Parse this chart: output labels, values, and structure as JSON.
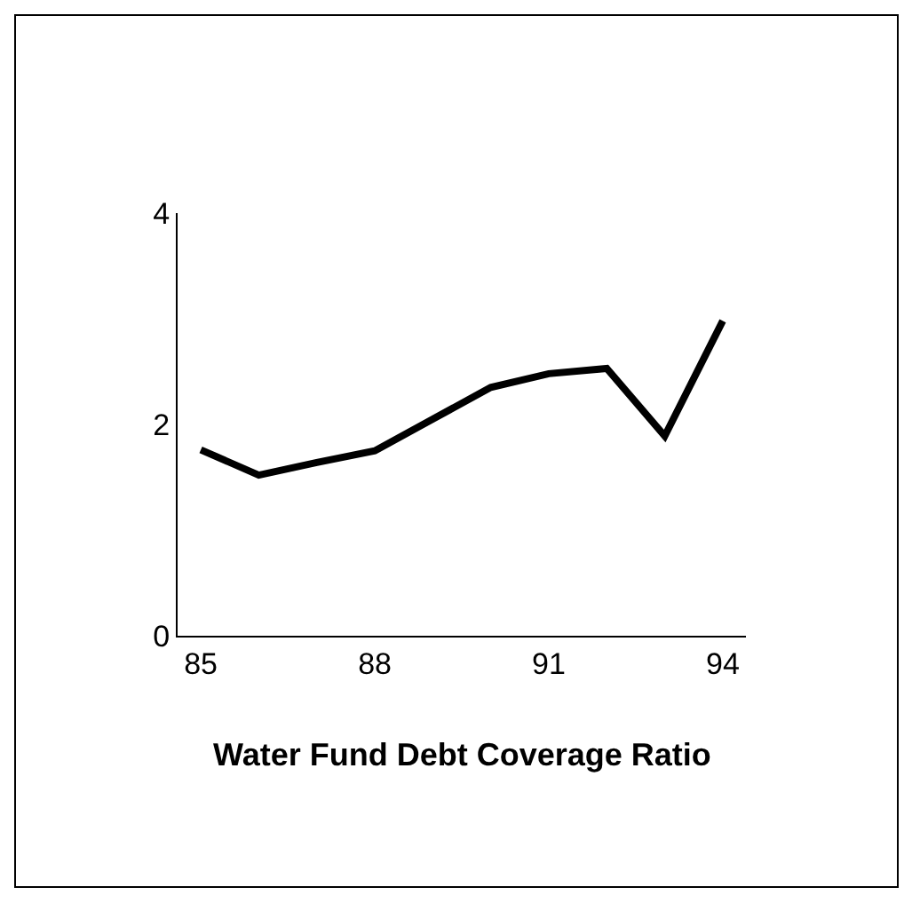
{
  "chart_data": {
    "type": "line",
    "title": "Water Fund Debt Coverage Ratio",
    "x": [
      85,
      86,
      87,
      88,
      89,
      90,
      91,
      92,
      93,
      94
    ],
    "values": [
      1.76,
      1.52,
      1.64,
      1.75,
      2.05,
      2.35,
      2.48,
      2.53,
      1.89,
      2.98
    ],
    "color": "#000000",
    "xlim": [
      84.6,
      94.4
    ],
    "xticks": [
      85,
      88,
      91,
      94
    ],
    "ylim": [
      0,
      4
    ],
    "yticks": [
      0,
      2,
      4
    ],
    "grid": false,
    "marker": "none",
    "line_style": "solid"
  }
}
